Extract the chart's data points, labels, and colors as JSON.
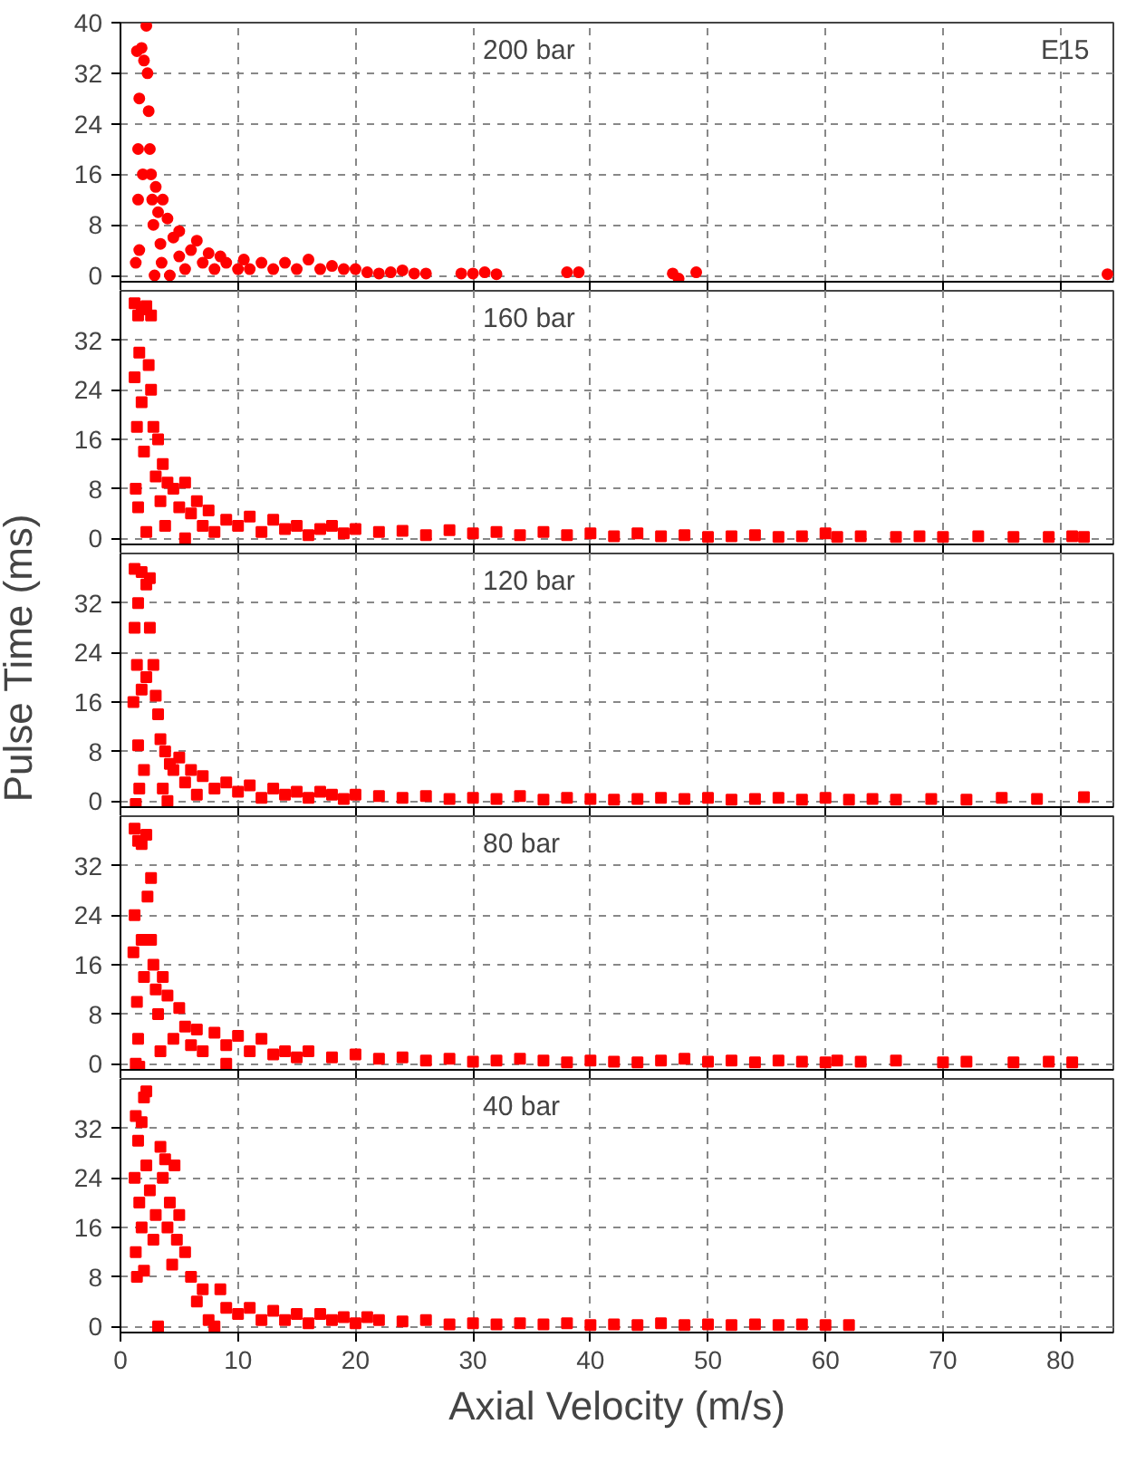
{
  "chart_data": [
    {
      "type": "scatter",
      "title": "200 bar",
      "annotations": [
        "E15"
      ],
      "marker": "circle",
      "grid": true,
      "tick_labels": "y",
      "xlim": [
        0,
        84.5
      ],
      "xticks": [
        0,
        10,
        20,
        30,
        40,
        50,
        60,
        70,
        80
      ],
      "ylim": [
        -1,
        40
      ],
      "yticks": [
        0,
        8,
        16,
        24,
        32,
        40
      ],
      "series": [
        {
          "color": "#ff0000",
          "x": [
            1.4,
            1.3,
            1.5,
            1.5,
            1.6,
            1.6,
            1.8,
            1.9,
            2.0,
            2.2,
            2.3,
            2.4,
            2.5,
            2.6,
            2.7,
            2.8,
            2.9,
            3.0,
            3.2,
            3.4,
            3.5,
            3.6,
            4.0,
            4.2,
            4.5,
            5.0,
            5.0,
            5.5,
            6.0,
            6.5,
            7.0,
            7.5,
            8.0,
            8.5,
            9.0,
            10,
            10.5,
            11,
            12,
            13,
            14,
            15,
            16,
            17,
            18,
            19,
            20,
            21,
            22,
            23,
            24,
            25,
            26,
            29,
            30,
            31,
            32,
            38,
            39,
            47,
            47.5,
            49,
            84
          ],
          "values": [
            35.5,
            2,
            12,
            20,
            28,
            4,
            36,
            16,
            34,
            39.5,
            32,
            26,
            20,
            16,
            12,
            8,
            0,
            14,
            10,
            5,
            2,
            12,
            9,
            0,
            6,
            3,
            7,
            1,
            4,
            5.5,
            2,
            3.5,
            1,
            3,
            2,
            1,
            2.5,
            1,
            2,
            1,
            2,
            1,
            2.5,
            1,
            1.5,
            1,
            1,
            0.5,
            0.3,
            0.5,
            0.8,
            0.3,
            0.3,
            0.3,
            0.3,
            0.5,
            0.2,
            0.5,
            0.5,
            0.3,
            -0.5,
            0.5,
            0.2
          ]
        }
      ]
    },
    {
      "type": "scatter",
      "title": "160 bar",
      "marker": "square",
      "grid": true,
      "tick_labels": "y",
      "xlim": [
        0,
        84.5
      ],
      "xticks": [
        0,
        10,
        20,
        30,
        40,
        50,
        60,
        70,
        80
      ],
      "ylim": [
        -1,
        40
      ],
      "yticks": [
        0,
        8,
        16,
        24,
        32
      ],
      "series": [
        {
          "color": "#ff0000",
          "x": [
            1.2,
            1.5,
            1.8,
            2.2,
            2.6,
            1.2,
            1.3,
            1.4,
            1.5,
            1.6,
            1.8,
            2.0,
            2.2,
            2.4,
            2.6,
            2.8,
            3.0,
            3.2,
            3.4,
            3.6,
            3.8,
            4.0,
            4.5,
            5.0,
            5.5,
            5.5,
            6,
            6.5,
            7,
            7.5,
            8,
            9,
            10,
            11,
            12,
            13,
            14,
            15,
            16,
            17,
            18,
            19,
            20,
            22,
            24,
            26,
            28,
            30,
            32,
            34,
            36,
            38,
            40,
            42,
            44,
            46,
            48,
            50,
            52,
            54,
            56,
            58,
            60,
            61,
            63,
            66,
            68,
            70,
            73,
            76,
            79,
            81,
            82
          ],
          "values": [
            38,
            36,
            37,
            37.5,
            36,
            26,
            8,
            18,
            5,
            30,
            22,
            14,
            1,
            28,
            24,
            18,
            10,
            16,
            6,
            12,
            2,
            9,
            8,
            5,
            9,
            0,
            4,
            6,
            2,
            4.5,
            1,
            3,
            2,
            3.5,
            1,
            3,
            1.5,
            2,
            0.5,
            1.5,
            2,
            0.8,
            1.5,
            1,
            1.2,
            0.5,
            1.3,
            0.8,
            1,
            0.5,
            1,
            0.5,
            0.8,
            0.3,
            0.8,
            0.3,
            0.5,
            0.2,
            0.3,
            0.5,
            0.2,
            0.3,
            0.8,
            0.2,
            0.3,
            0.2,
            0.3,
            0.2,
            0.3,
            0.2,
            0.2,
            0.3,
            0.2
          ]
        }
      ]
    },
    {
      "type": "scatter",
      "title": "120 bar",
      "ylabel": "Pulse Time (ms)",
      "marker": "square",
      "grid": true,
      "tick_labels": "y",
      "xlim": [
        0,
        84.5
      ],
      "xticks": [
        0,
        10,
        20,
        30,
        40,
        50,
        60,
        70,
        80
      ],
      "ylim": [
        -1,
        40
      ],
      "yticks": [
        0,
        8,
        16,
        24,
        32
      ],
      "series": [
        {
          "color": "#ff0000",
          "x": [
            1.2,
            1.5,
            1.8,
            2.2,
            2.5,
            1.1,
            1.2,
            1.4,
            1.5,
            1.6,
            1.3,
            1.8,
            2.0,
            2.2,
            2.5,
            2.8,
            3,
            3.2,
            3.4,
            3.6,
            3.8,
            4,
            4.2,
            4.5,
            5,
            5.5,
            6,
            6.5,
            7,
            8,
            9,
            10,
            11,
            12,
            13,
            14,
            15,
            16,
            17,
            18,
            19,
            20,
            22,
            24,
            26,
            28,
            30,
            32,
            34,
            36,
            38,
            40,
            42,
            44,
            46,
            48,
            50,
            52,
            54,
            56,
            58,
            60,
            62,
            64,
            66,
            69,
            72,
            75,
            78,
            82
          ],
          "values": [
            37.5,
            32,
            37,
            35,
            36,
            16,
            28,
            22,
            9,
            2,
            -0.5,
            18,
            5,
            20,
            28,
            22,
            17,
            14,
            10,
            2,
            8,
            0,
            6,
            5,
            7,
            3,
            5,
            1,
            4,
            2,
            3,
            1.5,
            2.5,
            0.5,
            2,
            1,
            1.5,
            0.5,
            1.5,
            1,
            0.3,
            1,
            0.8,
            0.5,
            0.8,
            0.3,
            0.5,
            0.3,
            0.8,
            0.2,
            0.5,
            0.3,
            0.2,
            0.3,
            0.5,
            0.3,
            0.5,
            0.2,
            0.3,
            0.5,
            0.2,
            0.5,
            0.2,
            0.3,
            0.2,
            0.3,
            0.2,
            0.5,
            0.3,
            0.6
          ]
        }
      ]
    },
    {
      "type": "scatter",
      "title": "80 bar",
      "marker": "square",
      "grid": true,
      "tick_labels": "y",
      "xlim": [
        0,
        84.5
      ],
      "xticks": [
        0,
        10,
        20,
        30,
        40,
        50,
        60,
        70,
        80
      ],
      "ylim": [
        -1,
        40
      ],
      "yticks": [
        0,
        8,
        16,
        24,
        32
      ],
      "series": [
        {
          "color": "#ff0000",
          "x": [
            1.2,
            1.5,
            1.8,
            2.2,
            2.6,
            1.1,
            1.2,
            1.3,
            1.4,
            1.5,
            1.6,
            1.8,
            2.0,
            2.3,
            2.6,
            2.8,
            3,
            3.2,
            3.4,
            3.6,
            4,
            4.5,
            5,
            5.5,
            6,
            6.5,
            7,
            8,
            9,
            9,
            10,
            11,
            12,
            13,
            14,
            15,
            16,
            18,
            20,
            22,
            24,
            26,
            28,
            30,
            32,
            34,
            36,
            38,
            40,
            42,
            44,
            46,
            48,
            50,
            52,
            54,
            56,
            58,
            60,
            61,
            63,
            66,
            70,
            72,
            76,
            79,
            81
          ],
          "values": [
            38,
            36,
            35.5,
            37,
            30,
            18,
            24,
            0,
            10,
            4,
            -0.5,
            20,
            14,
            27,
            20,
            16,
            12,
            8,
            2,
            14,
            11,
            4,
            9,
            6,
            3,
            5.5,
            2,
            5,
            3,
            0,
            4.5,
            2,
            4,
            1.5,
            2,
            1,
            2,
            1,
            1.5,
            0.8,
            1,
            0.5,
            0.8,
            0.3,
            0.5,
            0.8,
            0.5,
            0.2,
            0.5,
            0.3,
            0.2,
            0.5,
            0.8,
            0.3,
            0.5,
            0.2,
            0.5,
            0.3,
            0.2,
            0.5,
            0.3,
            0.5,
            0.2,
            0.3,
            0.2,
            0.3,
            0.2
          ]
        }
      ]
    },
    {
      "type": "scatter",
      "title": "40 bar",
      "xlabel": "Axial Velocity (m/s)",
      "marker": "square",
      "grid": true,
      "xlim": [
        0,
        84.5
      ],
      "xticks": [
        0,
        10,
        20,
        30,
        40,
        50,
        60,
        70,
        80
      ],
      "ylim": [
        -1,
        40
      ],
      "yticks": [
        0,
        8,
        16,
        24,
        32
      ],
      "series": [
        {
          "color": "#ff0000",
          "x": [
            1.3,
            1.5,
            1.8,
            2.0,
            2.2,
            1.2,
            1.3,
            1.4,
            1.6,
            1.8,
            2.0,
            2.2,
            2.5,
            2.8,
            3,
            3.2,
            3.4,
            3.6,
            3.8,
            4,
            4.2,
            4.4,
            4.6,
            4.8,
            5,
            5.5,
            6,
            6.5,
            7,
            7.5,
            8,
            8.5,
            9,
            10,
            11,
            12,
            13,
            14,
            15,
            16,
            17,
            18,
            19,
            20,
            21,
            22,
            24,
            26,
            28,
            30,
            32,
            34,
            36,
            38,
            40,
            42,
            44,
            46,
            48,
            50,
            52,
            54,
            56,
            58,
            60,
            62
          ],
          "values": [
            34,
            30,
            33,
            37,
            38,
            24,
            12,
            8,
            20,
            16,
            9,
            26,
            22,
            14,
            18,
            0,
            29,
            24,
            27,
            16,
            20,
            10,
            26,
            14,
            18,
            12,
            8,
            4,
            6,
            1,
            0,
            6,
            3,
            2,
            3,
            1,
            2.5,
            1,
            2,
            0.5,
            2,
            1,
            1.5,
            0.5,
            1.5,
            1,
            0.8,
            1,
            0.3,
            0.5,
            0.3,
            0.5,
            0.3,
            0.5,
            0.2,
            0.3,
            0.2,
            0.5,
            0.2,
            0.3,
            0.2,
            0.3,
            0.2,
            0.3,
            0.2,
            0.2
          ]
        }
      ]
    }
  ]
}
